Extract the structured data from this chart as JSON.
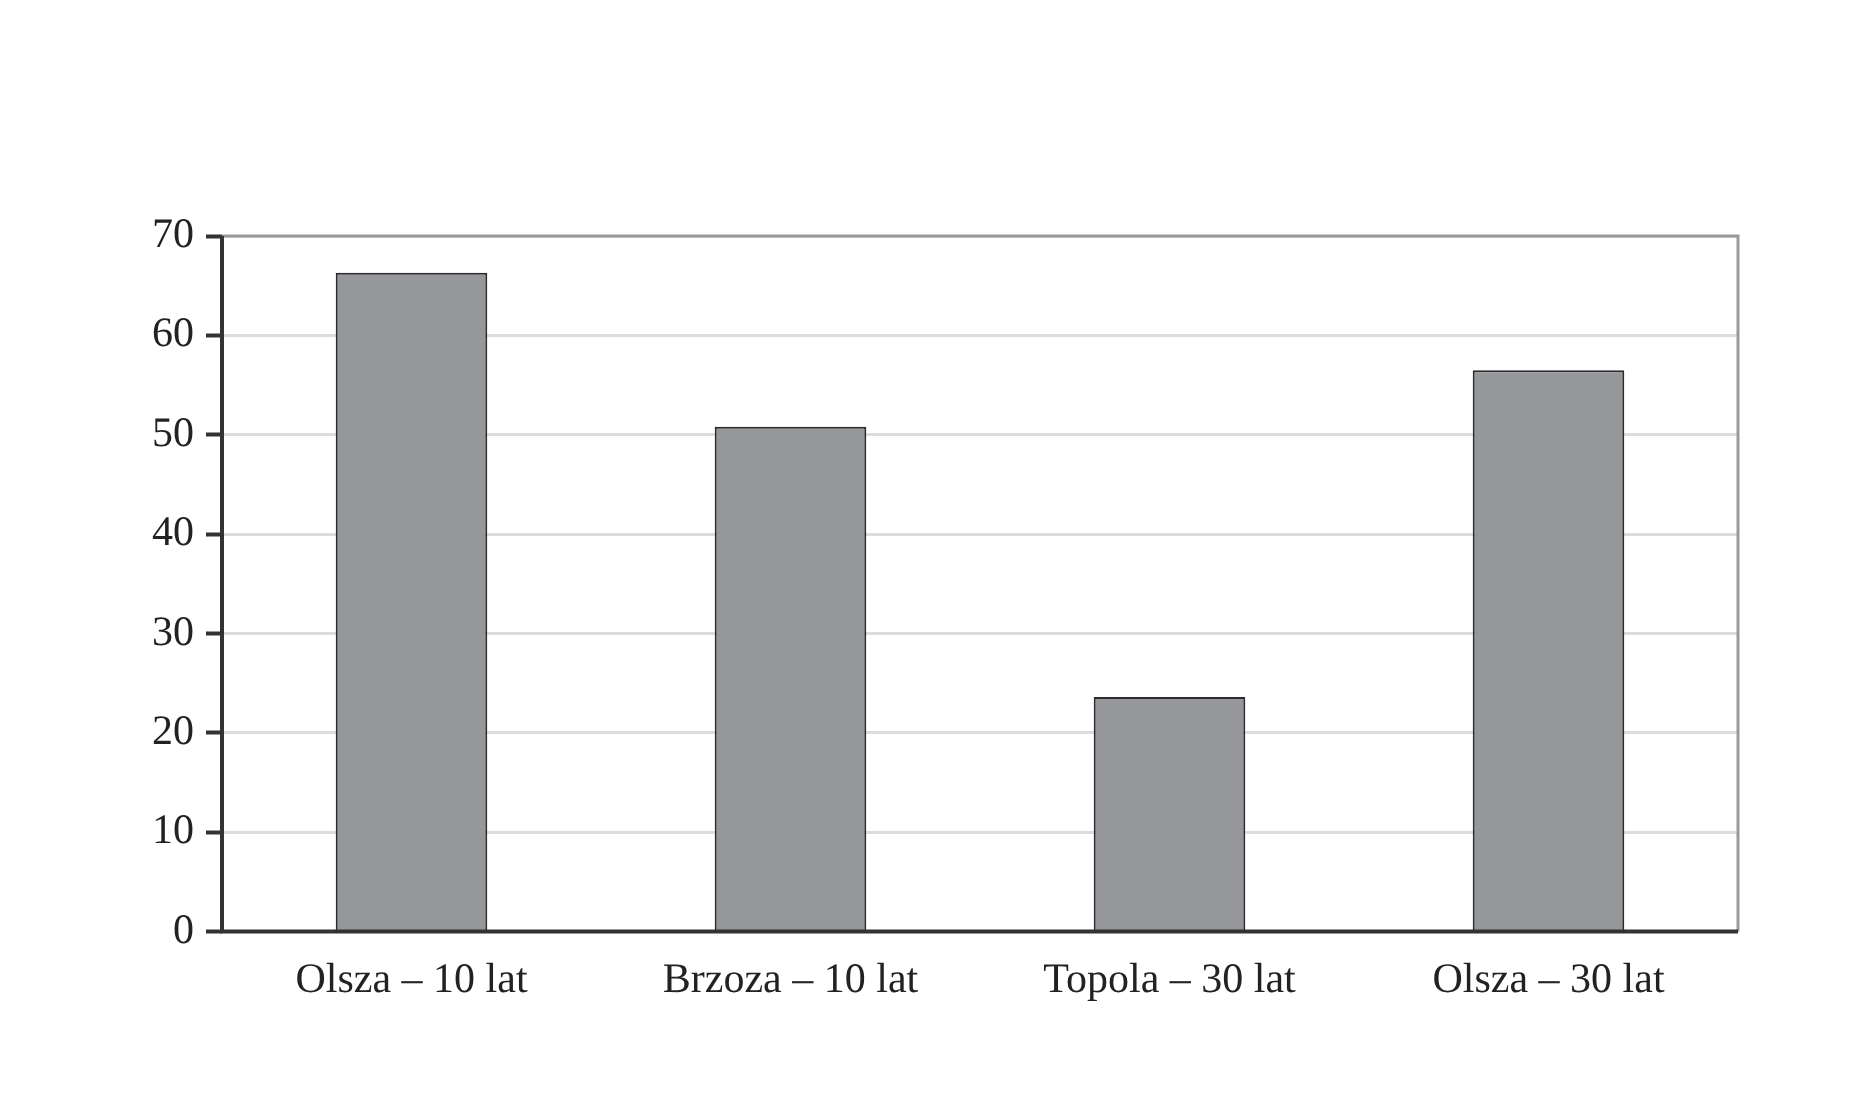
{
  "chart_data": {
    "type": "bar",
    "categories": [
      "Olsza – 10 lat",
      "Brzoza – 10 lat",
      "Topola – 30 lat",
      "Olsza – 30 lat"
    ],
    "values": [
      66.3,
      50.8,
      23.6,
      56.5
    ],
    "color": "#96979b",
    "ylim": [
      0,
      70
    ],
    "yticks": [
      0,
      10,
      20,
      30,
      40,
      50,
      60,
      70
    ],
    "grid": "y"
  }
}
